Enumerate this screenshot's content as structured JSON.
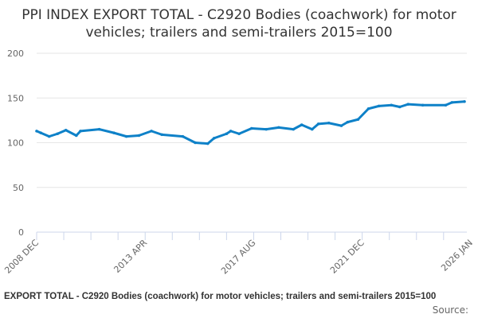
{
  "chart_data": {
    "type": "line",
    "title": "PPI INDEX EXPORT TOTAL - C2920 Bodies (coachwork) for motor vehicles; trailers and semi-trailers 2015=100",
    "xlabel": "",
    "ylabel": "",
    "ylim": [
      0,
      200
    ],
    "yticks": [
      "0",
      "50",
      "100",
      "150",
      "200"
    ],
    "xlim": [
      "2008-12",
      "2026-01"
    ],
    "xtick_labels": [
      "2008 DEC",
      "2013 APR",
      "2017 AUG",
      "2021 DEC",
      "2026 JAN"
    ],
    "grid": true,
    "color": "#0e81c8",
    "x": [
      "2008-12",
      "2009-02",
      "2009-06",
      "2009-10",
      "2010-02",
      "2010-07",
      "2010-09",
      "2011-06",
      "2012-01",
      "2012-07",
      "2013-01",
      "2013-07",
      "2013-12",
      "2014-10",
      "2015-04",
      "2015-10",
      "2016-01",
      "2016-07",
      "2016-09",
      "2017-01",
      "2017-07",
      "2018-02",
      "2018-08",
      "2019-03",
      "2019-07",
      "2019-12",
      "2020-03",
      "2020-08",
      "2021-02",
      "2021-05",
      "2021-10",
      "2022-03",
      "2022-08",
      "2023-02",
      "2023-06",
      "2023-10",
      "2024-05",
      "2025-04",
      "2025-07",
      "2026-01"
    ],
    "values": [
      113,
      111,
      107,
      110,
      114,
      108,
      113,
      115,
      111,
      107,
      108,
      113,
      109,
      107,
      100,
      99,
      105,
      110,
      113,
      110,
      116,
      115,
      117,
      115,
      120,
      115,
      121,
      122,
      119,
      123,
      126,
      138,
      141,
      142,
      140,
      143,
      142,
      142,
      145,
      146
    ]
  },
  "footer": {
    "series_label": "EXPORT TOTAL - C2920 Bodies (coachwork) for motor vehicles; trailers and semi-trailers 2015=100",
    "source_label": "Source:"
  }
}
